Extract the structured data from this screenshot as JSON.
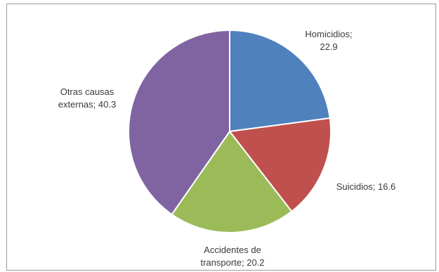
{
  "chart_data": {
    "type": "pie",
    "slices": [
      {
        "name": "Homicidios",
        "value": 22.9,
        "color": "#4f81bd",
        "label_lines": [
          "Homicidios;",
          "22.9"
        ]
      },
      {
        "name": "Suicidios",
        "value": 16.6,
        "color": "#c0504d",
        "label_lines": [
          "Suicidios; 16.6"
        ]
      },
      {
        "name": "Accidentes de transporte",
        "value": 20.2,
        "color": "#9bbb59",
        "label_lines": [
          "Accidentes de",
          "transporte; 20.2"
        ]
      },
      {
        "name": "Otras causas externas",
        "value": 40.3,
        "color": "#8064a2",
        "label_lines": [
          "Otras causas",
          "externas; 40.3"
        ]
      }
    ],
    "start": "12 o'clock",
    "direction": "clockwise",
    "legend": "none"
  }
}
